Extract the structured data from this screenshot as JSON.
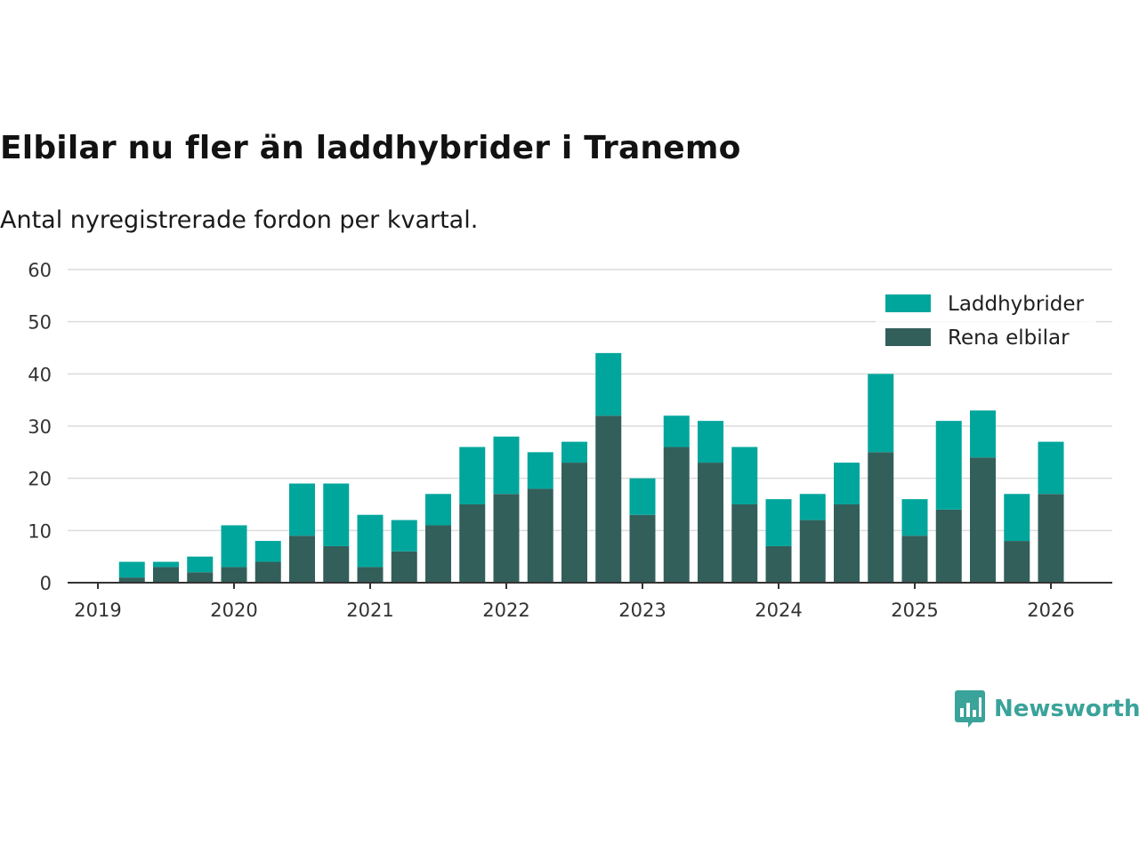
{
  "chart_data": {
    "type": "bar",
    "stacked": true,
    "title": "Elbilar nu fler än laddhybrider i Tranemo",
    "subtitle": "Antal nyregistrerade fordon per kvartal.",
    "xlabel": "",
    "ylabel": "",
    "ylim": [
      0,
      60
    ],
    "yticks": [
      0,
      10,
      20,
      30,
      40,
      50,
      60
    ],
    "xlim": [
      2019.0,
      2026.45
    ],
    "xticks": [
      "2019",
      "2020",
      "2021",
      "2022",
      "2023",
      "2024",
      "2025",
      "2026"
    ],
    "x": [
      2019.25,
      2019.5,
      2019.75,
      2020.0,
      2020.25,
      2020.5,
      2020.75,
      2021.0,
      2021.25,
      2021.5,
      2021.75,
      2022.0,
      2022.25,
      2022.5,
      2022.75,
      2023.0,
      2023.25,
      2023.5,
      2023.75,
      2024.0,
      2024.25,
      2024.5,
      2024.75,
      2025.0,
      2025.25,
      2025.5,
      2025.75,
      2026.0
    ],
    "series": [
      {
        "name": "Rena elbilar",
        "color": "#335f5b",
        "values": [
          1,
          3,
          2,
          3,
          4,
          9,
          7,
          3,
          6,
          11,
          15,
          17,
          18,
          23,
          32,
          13,
          26,
          23,
          15,
          7,
          12,
          15,
          25,
          9,
          14,
          24,
          8,
          17
        ]
      },
      {
        "name": "Laddhybrider",
        "color": "#00a69c",
        "values": [
          3,
          1,
          3,
          8,
          4,
          10,
          12,
          10,
          6,
          6,
          11,
          11,
          7,
          4,
          12,
          7,
          6,
          8,
          11,
          9,
          5,
          8,
          15,
          7,
          17,
          9,
          9,
          10
        ]
      }
    ],
    "legend": [
      "Laddhybrider",
      "Rena elbilar"
    ],
    "legend_position": "top-right",
    "grid": true
  },
  "brand": {
    "name": "Newsworthy",
    "color": "#3aa39a"
  }
}
